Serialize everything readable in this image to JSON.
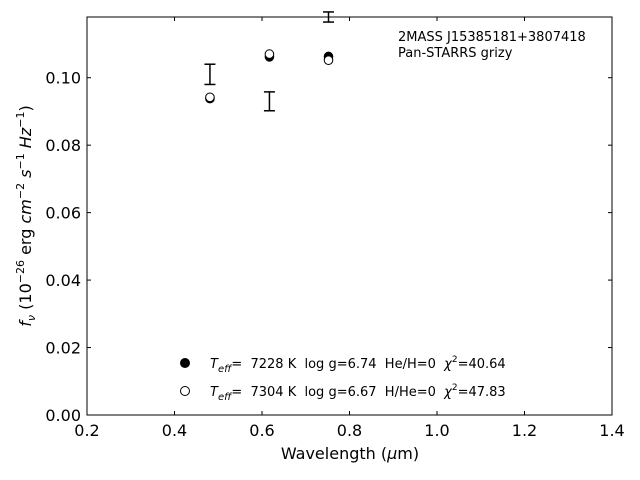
{
  "chart_data": {
    "type": "scatter",
    "xlabel": "Wavelength (μm)",
    "ylabel": "fν (10−26 erg cm−2 s−1 Hz−1)",
    "xlim": [
      0.2,
      1.4
    ],
    "ylim": [
      0.0,
      0.118
    ],
    "xticks": [
      0.2,
      0.4,
      0.6,
      0.8,
      1.0,
      1.2,
      1.4
    ],
    "xtick_labels": [
      "0.2",
      "0.4",
      "0.6",
      "0.8",
      "1.0",
      "1.2",
      "1.4"
    ],
    "yticks": [
      0.0,
      0.02,
      0.04,
      0.06,
      0.08,
      0.1
    ],
    "ytick_labels": [
      "0.00",
      "0.02",
      "0.04",
      "0.06",
      "0.08",
      "0.10"
    ],
    "grid": false,
    "annotations": [
      "2MASS J15385181+3807418",
      "Pan-STARRS grizy"
    ],
    "observed": {
      "x": [
        0.481,
        0.617,
        0.752
      ],
      "y": [
        0.101,
        0.093,
        0.118
      ],
      "err": [
        0.003,
        0.0028,
        0.0015
      ]
    },
    "series": [
      {
        "name": "Teff= 7228 K log g=6.74 He/H=0 χ2=40.64",
        "marker": "filled-circle",
        "x": [
          0.481,
          0.617,
          0.752
        ],
        "y": [
          0.0938,
          0.1062,
          0.1063
        ]
      },
      {
        "name": "Teff= 7304 K log g=6.67 H/He=0 χ2=47.83",
        "marker": "open-circle",
        "x": [
          0.481,
          0.617,
          0.752
        ],
        "y": [
          0.0942,
          0.107,
          0.1052
        ]
      }
    ],
    "legend": [
      {
        "teff_sym": "T",
        "teff_sub": "eff",
        "rest1": "=  7228 K  log g=6.74  He/H=0  ",
        "chi": "χ",
        "chi_sup": "2",
        "chi_val": "=40.64"
      },
      {
        "teff_sym": "T",
        "teff_sub": "eff",
        "rest1": "=  7304 K  log g=6.67  H/He=0  ",
        "chi": "χ",
        "chi_sup": "2",
        "chi_val": "=47.83"
      }
    ],
    "legend_placement": "lower-center"
  },
  "labels": {
    "xlabel_main": "Wavelength (",
    "xlabel_mu": "μ",
    "xlabel_end": "m)",
    "ylabel_f": "f",
    "ylabel_nu": "ν",
    "ylabel_open": " (10",
    "ylabel_e1": "−26",
    "ylabel_erg": " erg ",
    "ylabel_cm": "cm",
    "ylabel_e2": "−2",
    "ylabel_s": " s",
    "ylabel_e3": "−1",
    "ylabel_hz": " Hz",
    "ylabel_e4": "−1",
    "ylabel_close": ")"
  }
}
